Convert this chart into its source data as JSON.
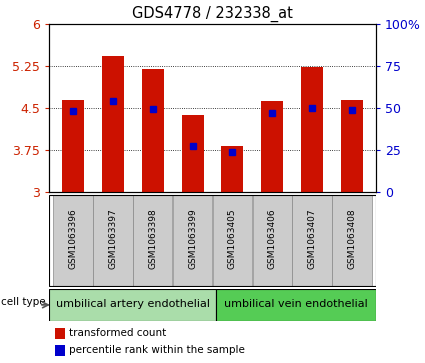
{
  "title": "GDS4778 / 232338_at",
  "samples": [
    "GSM1063396",
    "GSM1063397",
    "GSM1063398",
    "GSM1063399",
    "GSM1063405",
    "GSM1063406",
    "GSM1063407",
    "GSM1063408"
  ],
  "bar_values": [
    4.65,
    5.42,
    5.2,
    4.38,
    3.83,
    4.62,
    5.22,
    4.65
  ],
  "percentile_values": [
    4.44,
    4.62,
    4.48,
    3.82,
    3.72,
    4.41,
    4.5,
    4.46
  ],
  "ylim": [
    3.0,
    6.0
  ],
  "yticks_left": [
    3,
    3.75,
    4.5,
    5.25,
    6
  ],
  "yticks_right_vals": [
    0,
    25,
    50,
    75,
    100
  ],
  "yticks_right_labels": [
    "0",
    "25",
    "50",
    "75",
    "100%"
  ],
  "bar_color": "#cc1100",
  "percentile_color": "#0000cc",
  "bar_width": 0.55,
  "group1_color": "#aaddaa",
  "group2_color": "#55cc55",
  "group1_label": "umbilical artery endothelial",
  "group2_label": "umbilical vein endothelial",
  "legend_red_label": "transformed count",
  "legend_blue_label": "percentile rank within the sample",
  "cell_type_label": "cell type",
  "tick_label_color_left": "#cc2200",
  "tick_label_color_right": "#0000cc",
  "sample_box_color": "#cccccc",
  "grid_linestyle": ":",
  "grid_color": "#000000",
  "grid_linewidth": 0.6
}
